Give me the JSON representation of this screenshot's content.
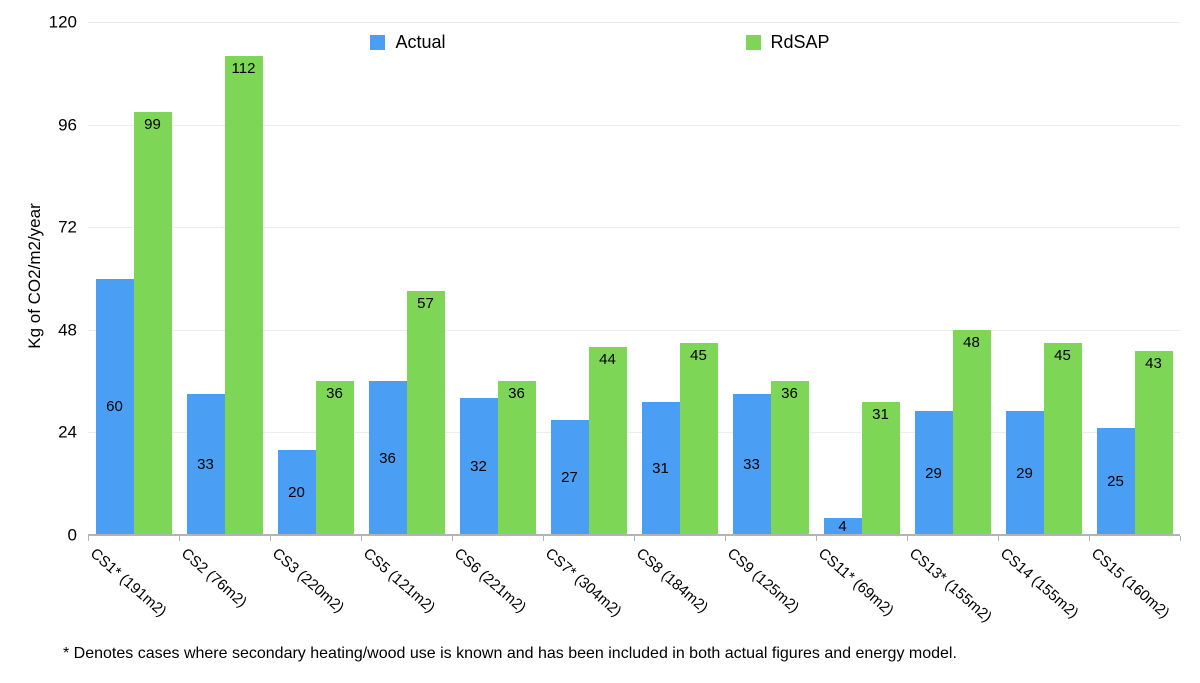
{
  "chart_data": {
    "type": "bar",
    "title": "",
    "xlabel": "",
    "ylabel": "Kg of CO2/m2/year",
    "ylim": [
      0,
      120
    ],
    "yticks": [
      0,
      24,
      48,
      72,
      96,
      120
    ],
    "grid": true,
    "legend_position": "top-center",
    "categories": [
      "CS1* (191m2)",
      "CS2 (76m2)",
      "CS3 (220m2)",
      "CS5 (121m2)",
      "CS6 (221m2)",
      "CS7* (304m2)",
      "CS8 (184m2)",
      "CS9 (125m2)",
      "CS11* (69m2)",
      "CS13* (155m2)",
      "CS14 (155m2)",
      "CS15 (160m2)"
    ],
    "series": [
      {
        "name": "Actual",
        "color": "#4A9EF4",
        "values": [
          60,
          33,
          20,
          36,
          32,
          27,
          31,
          33,
          4,
          29,
          29,
          25
        ]
      },
      {
        "name": "RdSAP",
        "color": "#7ED657",
        "values": [
          99,
          112,
          36,
          57,
          36,
          44,
          45,
          36,
          31,
          48,
          45,
          43
        ]
      }
    ],
    "footnote": "* Denotes cases where secondary heating/wood use is known and has been included in both actual figures and energy model."
  },
  "colors": {
    "background": "#ffffff",
    "gridline": "#ececec",
    "axis": "#b3b3b3",
    "text": "#000000"
  }
}
